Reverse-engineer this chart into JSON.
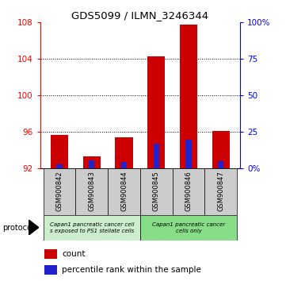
{
  "title": "GDS5099 / ILMN_3246344",
  "samples": [
    "GSM900842",
    "GSM900843",
    "GSM900844",
    "GSM900845",
    "GSM900846",
    "GSM900847"
  ],
  "count_values": [
    95.7,
    93.3,
    95.4,
    104.3,
    107.8,
    96.1
  ],
  "percentile_values": [
    3.0,
    5.5,
    4.5,
    17.0,
    20.0,
    5.0
  ],
  "ylim_left": [
    92,
    108
  ],
  "ylim_right": [
    0,
    100
  ],
  "yticks_left": [
    92,
    96,
    100,
    104,
    108
  ],
  "yticks_right": [
    0,
    25,
    50,
    75,
    100
  ],
  "ytick_labels_right": [
    "0%",
    "25",
    "50",
    "75",
    "100%"
  ],
  "bar_color_red": "#cc0000",
  "bar_color_blue": "#2222cc",
  "group1_label": "Capan1 pancreatic cancer cell\ns exposed to PS1 stellate cells",
  "group2_label": "Capan1 pancreatic cancer\ncells only",
  "group1_indices": [
    0,
    1,
    2
  ],
  "group2_indices": [
    3,
    4,
    5
  ],
  "group1_color": "#cceecc",
  "group2_color": "#88dd88",
  "protocol_label": "protocol",
  "legend_count": "count",
  "legend_percentile": "percentile rank within the sample",
  "bar_width": 0.55,
  "base_value": 92,
  "percentile_bar_width": 0.18,
  "sample_bg_color": "#cccccc"
}
